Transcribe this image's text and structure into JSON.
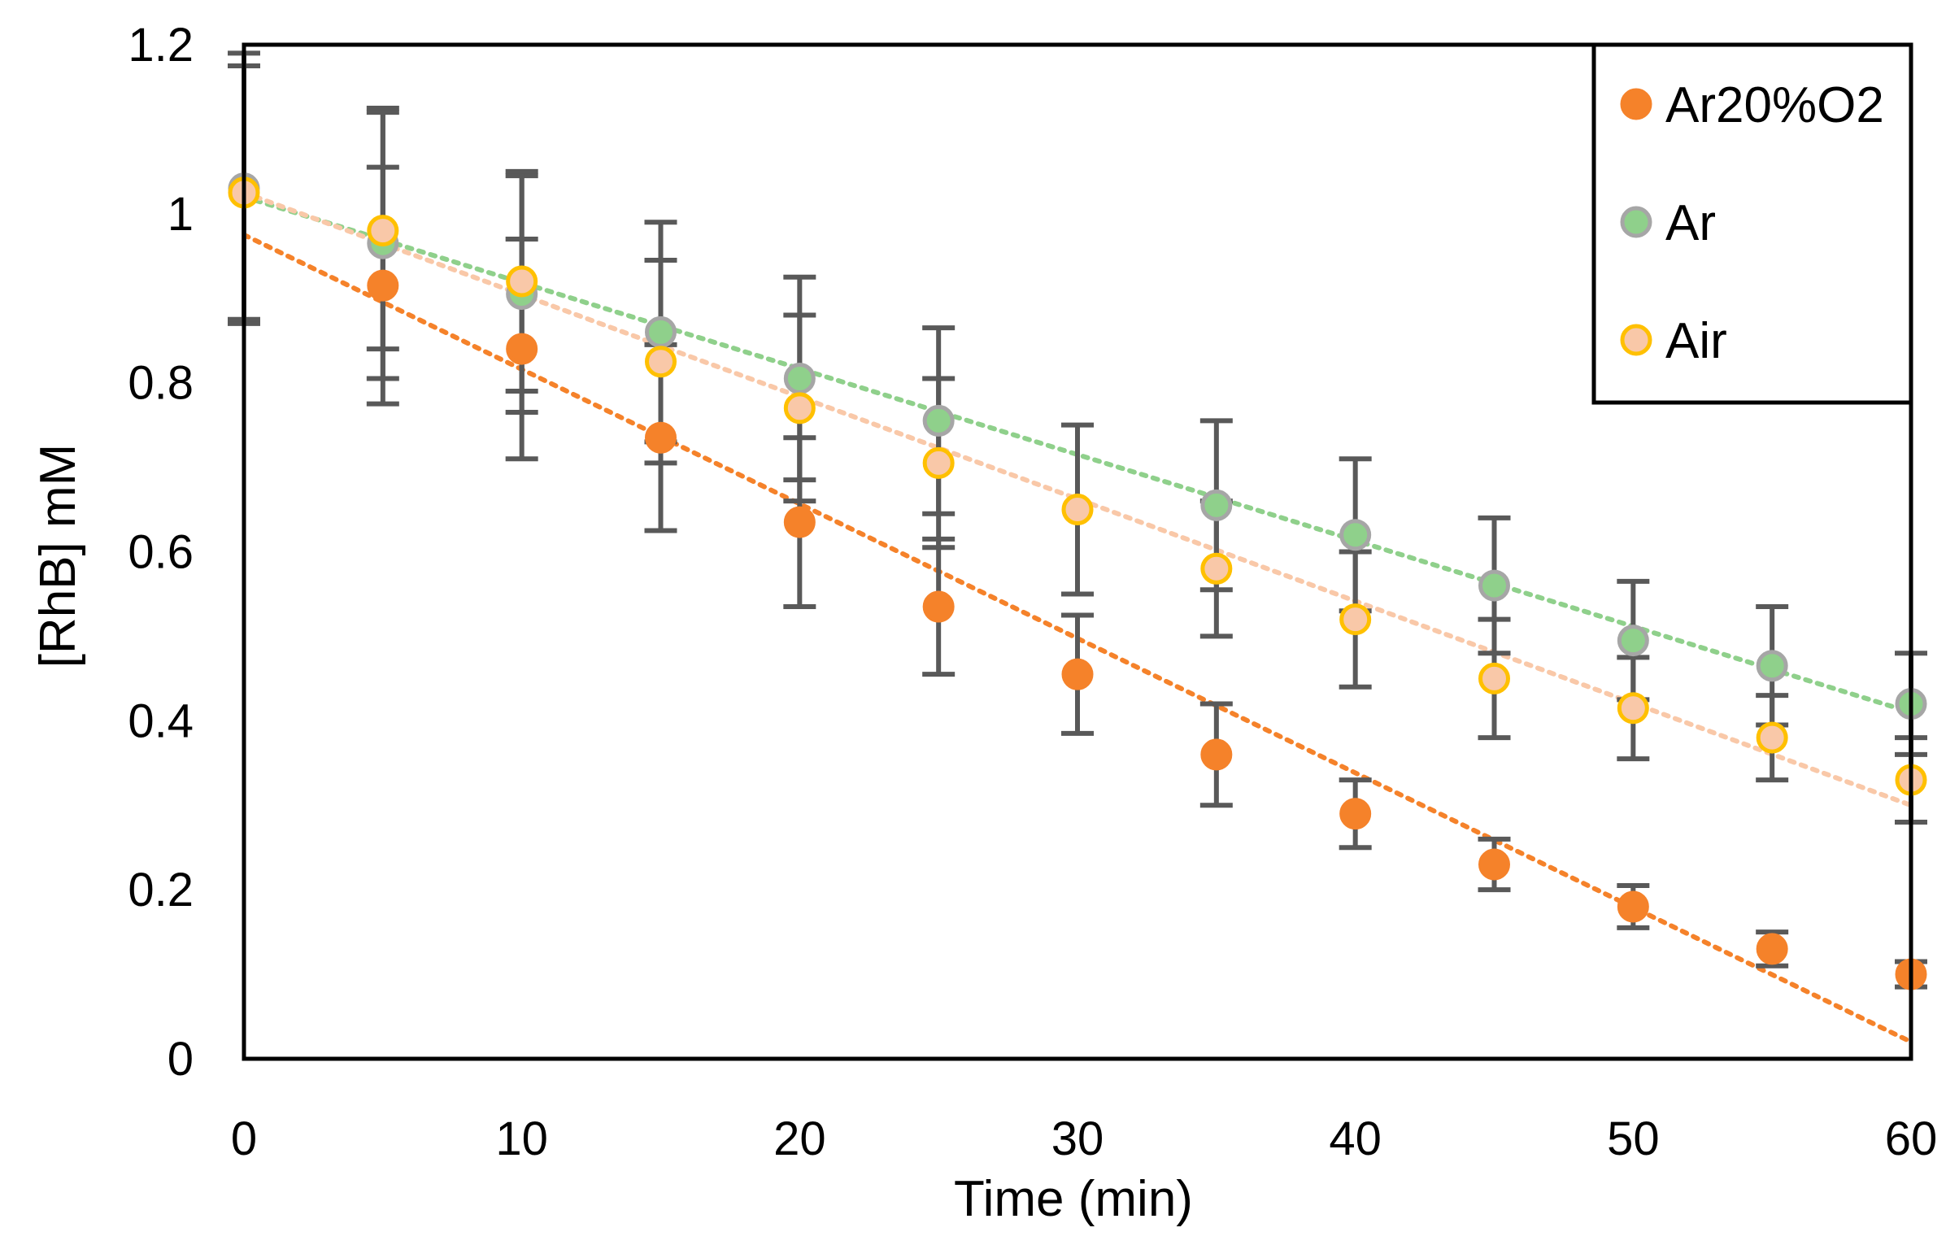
{
  "chart_data": {
    "type": "scatter",
    "title": "",
    "xlabel": "Time (min)",
    "ylabel": "[RhB] mM",
    "xlim": [
      0,
      60
    ],
    "ylim": [
      0,
      1.2
    ],
    "x_ticks": [
      "0",
      "10",
      "20",
      "30",
      "40",
      "50",
      "60"
    ],
    "y_ticks": [
      "0",
      "0.2",
      "0.4",
      "0.6",
      "0.8",
      "1",
      "1.2"
    ],
    "x_tick_values": [
      0,
      10,
      20,
      30,
      40,
      50,
      60
    ],
    "y_tick_values": [
      0,
      0.2,
      0.4,
      0.6,
      0.8,
      1.0,
      1.2
    ],
    "grid": false,
    "legend_position": "top-right",
    "series": [
      {
        "name": "Ar",
        "fill": "#8fd08b",
        "stroke": "#a6a6a6",
        "trend_color": "#8fd08b",
        "x": [
          0,
          5,
          10,
          15,
          20,
          25,
          35,
          40,
          45,
          50,
          55,
          60
        ],
        "y": [
          1.03,
          0.965,
          0.905,
          0.86,
          0.805,
          0.755,
          0.655,
          0.62,
          0.56,
          0.495,
          0.465,
          0.42
        ],
        "err": [
          0.16,
          0.16,
          0.14,
          0.13,
          0.12,
          0.11,
          0.1,
          0.09,
          0.08,
          0.07,
          0.07,
          0.06
        ],
        "trend": {
          "x": [
            0,
            60
          ],
          "y": [
            1.02,
            0.41
          ]
        }
      },
      {
        "name": "Air",
        "fill": "#f9c8a8",
        "stroke": "#ffc000",
        "trend_color": "#f9c8a8",
        "x": [
          0,
          5,
          10,
          15,
          20,
          25,
          30,
          35,
          40,
          45,
          50,
          55,
          60
        ],
        "y": [
          1.025,
          0.98,
          0.92,
          0.825,
          0.77,
          0.705,
          0.65,
          0.58,
          0.52,
          0.45,
          0.415,
          0.38,
          0.33
        ],
        "err": [
          0.15,
          0.14,
          0.13,
          0.12,
          0.11,
          0.1,
          0.1,
          0.08,
          0.08,
          0.07,
          0.06,
          0.05,
          0.05
        ],
        "trend": {
          "x": [
            0,
            60
          ],
          "y": [
            1.025,
            0.3
          ]
        }
      },
      {
        "name": "Ar20%O2",
        "fill": "#f5822a",
        "stroke": "#f5822a",
        "trend_color": "#f5822a",
        "x": [
          5,
          10,
          15,
          20,
          25,
          30,
          35,
          40,
          45,
          50,
          55,
          60
        ],
        "y": [
          0.915,
          0.84,
          0.735,
          0.635,
          0.535,
          0.455,
          0.36,
          0.29,
          0.23,
          0.18,
          0.13,
          0.1
        ],
        "err": [
          0.14,
          0.13,
          0.11,
          0.1,
          0.08,
          0.07,
          0.06,
          0.04,
          0.03,
          0.025,
          0.02,
          0.015
        ],
        "trend": {
          "x": [
            0,
            60
          ],
          "y": [
            0.975,
            0.02
          ]
        }
      }
    ],
    "legend_order": [
      "Ar20%O2",
      "Ar",
      "Air"
    ],
    "error_bar_color": "#595959"
  }
}
